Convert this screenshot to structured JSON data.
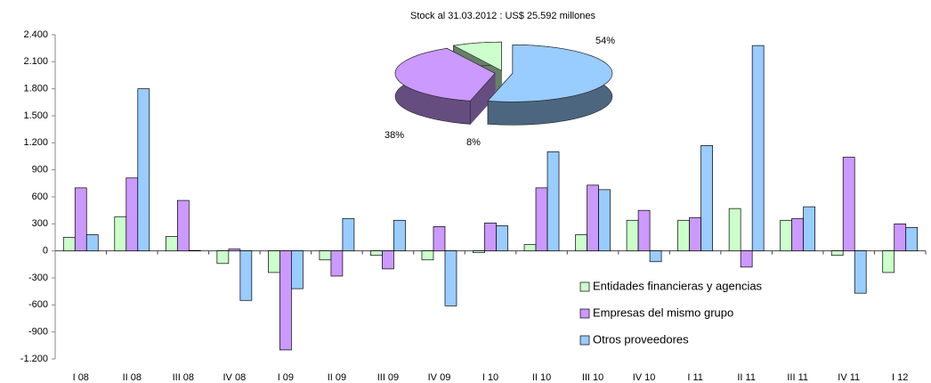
{
  "chart_data": [
    {
      "type": "bar",
      "categories": [
        "I 08",
        "II 08",
        "III 08",
        "IV 08",
        "I 09",
        "II 09",
        "III 09",
        "IV 09",
        "I 10",
        "II 10",
        "III 10",
        "IV 10",
        "I 11",
        "II 11",
        "III 11",
        "IV 11",
        "I 12"
      ],
      "series": [
        {
          "name": "Entidades financieras y agencias",
          "color": "#ccffcc",
          "values": [
            150,
            380,
            160,
            -140,
            -240,
            -100,
            -50,
            -100,
            -20,
            70,
            180,
            340,
            340,
            470,
            340,
            -50,
            -240
          ]
        },
        {
          "name": "Empresas del mismo grupo",
          "color": "#cc99ff",
          "values": [
            700,
            810,
            560,
            20,
            -1100,
            -280,
            -200,
            270,
            310,
            700,
            730,
            450,
            370,
            -180,
            360,
            1040,
            300
          ]
        },
        {
          "name": "Otros proveedores",
          "color": "#99ccff",
          "values": [
            180,
            1800,
            5,
            -550,
            -420,
            360,
            340,
            -610,
            280,
            1100,
            680,
            -120,
            1170,
            2280,
            490,
            -470,
            260
          ]
        }
      ],
      "ylim": [
        -1200,
        2400
      ],
      "yticks": [
        {
          "value": -1200,
          "label": "-1.200"
        },
        -900,
        -600,
        -300,
        0,
        300,
        600,
        900,
        {
          "value": 1200,
          "label": "1.200"
        },
        {
          "value": 1500,
          "label": "1.500"
        },
        {
          "value": 1800,
          "label": "1.800"
        },
        {
          "value": 2100,
          "label": "2.100"
        },
        {
          "value": 2400,
          "label": "2.400"
        }
      ],
      "grid": false,
      "legend": "bottom-right"
    },
    {
      "type": "pie",
      "title": "Stock al 31.03.2012 : US$ 25.592 millones",
      "values": [
        8,
        38,
        54
      ],
      "value_labels": [
        "8%",
        "38%",
        "54%"
      ],
      "colors": [
        "#ccffcc",
        "#cc99ff",
        "#99ccff"
      ]
    }
  ]
}
